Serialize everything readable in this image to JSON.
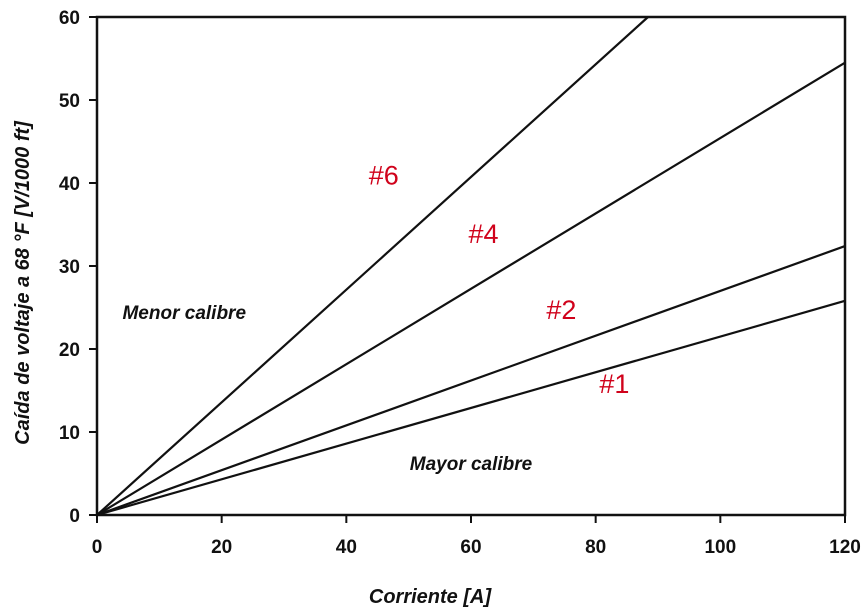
{
  "chart_data": {
    "type": "line",
    "xlabel": "Corriente [A]",
    "ylabel": "Caída de voltaje a 68 °F [V/1000 ft]",
    "xlim": [
      0,
      120
    ],
    "ylim": [
      0,
      60
    ],
    "xticks": [
      0,
      20,
      40,
      60,
      80,
      100,
      120
    ],
    "yticks": [
      0,
      10,
      20,
      30,
      40,
      50,
      60
    ],
    "grid": false,
    "series": [
      {
        "name": "#6",
        "x": [
          0,
          88.4
        ],
        "y": [
          0,
          60
        ],
        "color": "#111111"
      },
      {
        "name": "#4",
        "x": [
          0,
          120
        ],
        "y": [
          0,
          54.5
        ],
        "color": "#111111"
      },
      {
        "name": "#2",
        "x": [
          0,
          120
        ],
        "y": [
          0,
          32.4
        ],
        "color": "#111111"
      },
      {
        "name": "#1",
        "x": [
          0,
          120
        ],
        "y": [
          0,
          25.8
        ],
        "color": "#111111"
      }
    ],
    "series_label_positions": [
      {
        "name": "#6",
        "x": 46,
        "y": 39.8
      },
      {
        "name": "#4",
        "x": 62,
        "y": 32.8
      },
      {
        "name": "#2",
        "x": 74.5,
        "y": 23.6
      },
      {
        "name": "#1",
        "x": 83,
        "y": 14.7
      }
    ],
    "annotations": [
      {
        "text": "Menor calibre",
        "x": 14,
        "y": 23.6
      },
      {
        "text": "Mayor calibre",
        "x": 60,
        "y": 5.4
      }
    ],
    "label_color": "#d0021b"
  }
}
